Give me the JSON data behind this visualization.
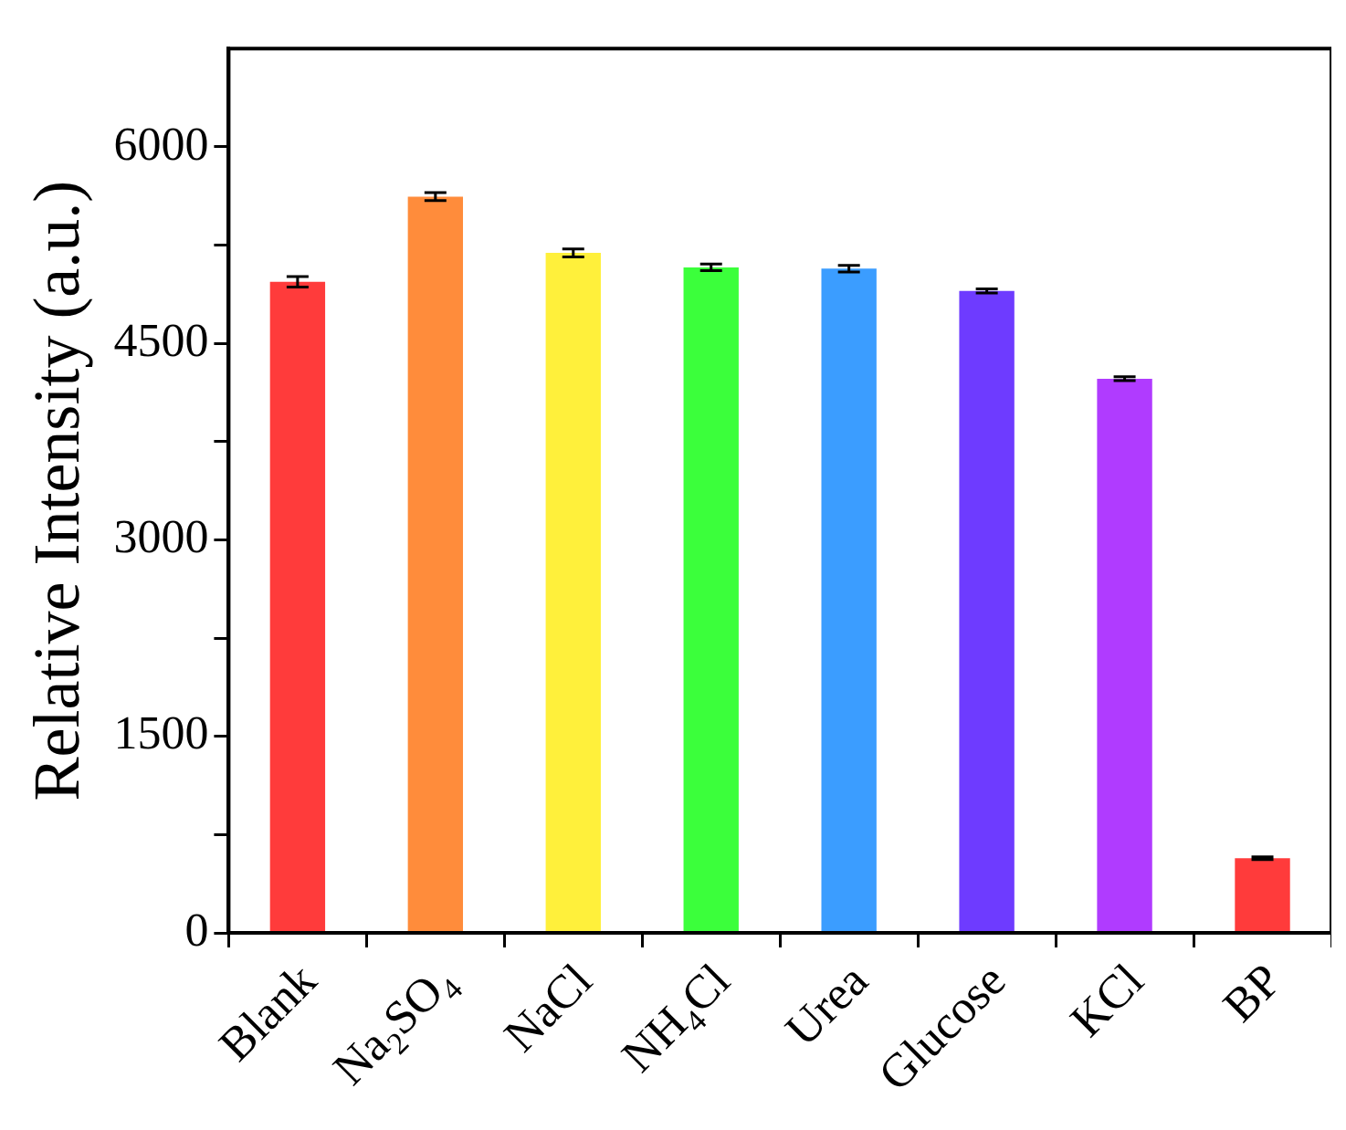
{
  "chart_data": {
    "type": "bar",
    "ylabel": "Relative Intensity (a.u.)",
    "categories": [
      "Blank",
      "Na$_{2}$SO$_{4}$",
      "NaCl",
      "NH$_{4}$Cl",
      "Urea",
      "Glucose",
      "KCl",
      "BP"
    ],
    "values": [
      4970,
      5620,
      5190,
      5080,
      5070,
      4900,
      4230,
      570
    ],
    "errors": [
      40,
      30,
      30,
      25,
      25,
      15,
      15,
      10
    ],
    "colors": [
      "#ff3b3b",
      "#ff8c3b",
      "#fff03b",
      "#3bff3b",
      "#3b9dff",
      "#6e3bff",
      "#b03bff",
      "#ff3b3b"
    ],
    "ylim": [
      0,
      6750
    ],
    "yticks": [
      0,
      {
        "value": 750,
        "label": null
      },
      1500,
      {
        "value": 2250,
        "label": null
      },
      3000,
      {
        "value": 3750,
        "label": null
      },
      4500,
      {
        "value": 5250,
        "label": null
      },
      6000
    ],
    "grid": false,
    "legend": false
  }
}
